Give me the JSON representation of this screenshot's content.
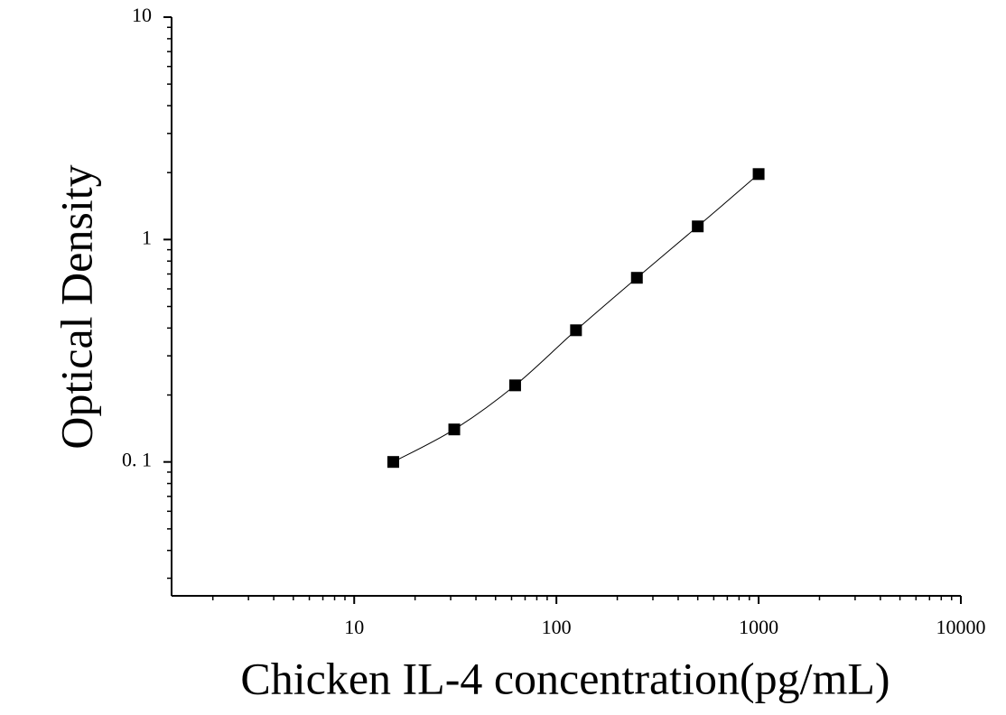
{
  "chart_data": {
    "type": "scatter",
    "x_label": "Chicken IL-4 concentration(pg/mL)",
    "y_label": "Optical Density",
    "x": [
      15.6,
      31.25,
      62.5,
      125,
      250,
      500,
      1000
    ],
    "series": [
      {
        "color": "#000000",
        "values": [
          0.1,
          0.14,
          0.221,
          0.391,
          0.673,
          1.146,
          1.97
        ]
      }
    ],
    "fit_line": true,
    "xlog": true,
    "ylog": true,
    "xlim": [
      1.25,
      10000
    ],
    "ylim": [
      0.025,
      10
    ],
    "xticks": [
      10,
      100,
      1000,
      10000
    ],
    "yticks": [
      {
        "value": 0.1,
        "label": "0. 1"
      },
      1,
      10
    ],
    "minor_ticks": true
  }
}
